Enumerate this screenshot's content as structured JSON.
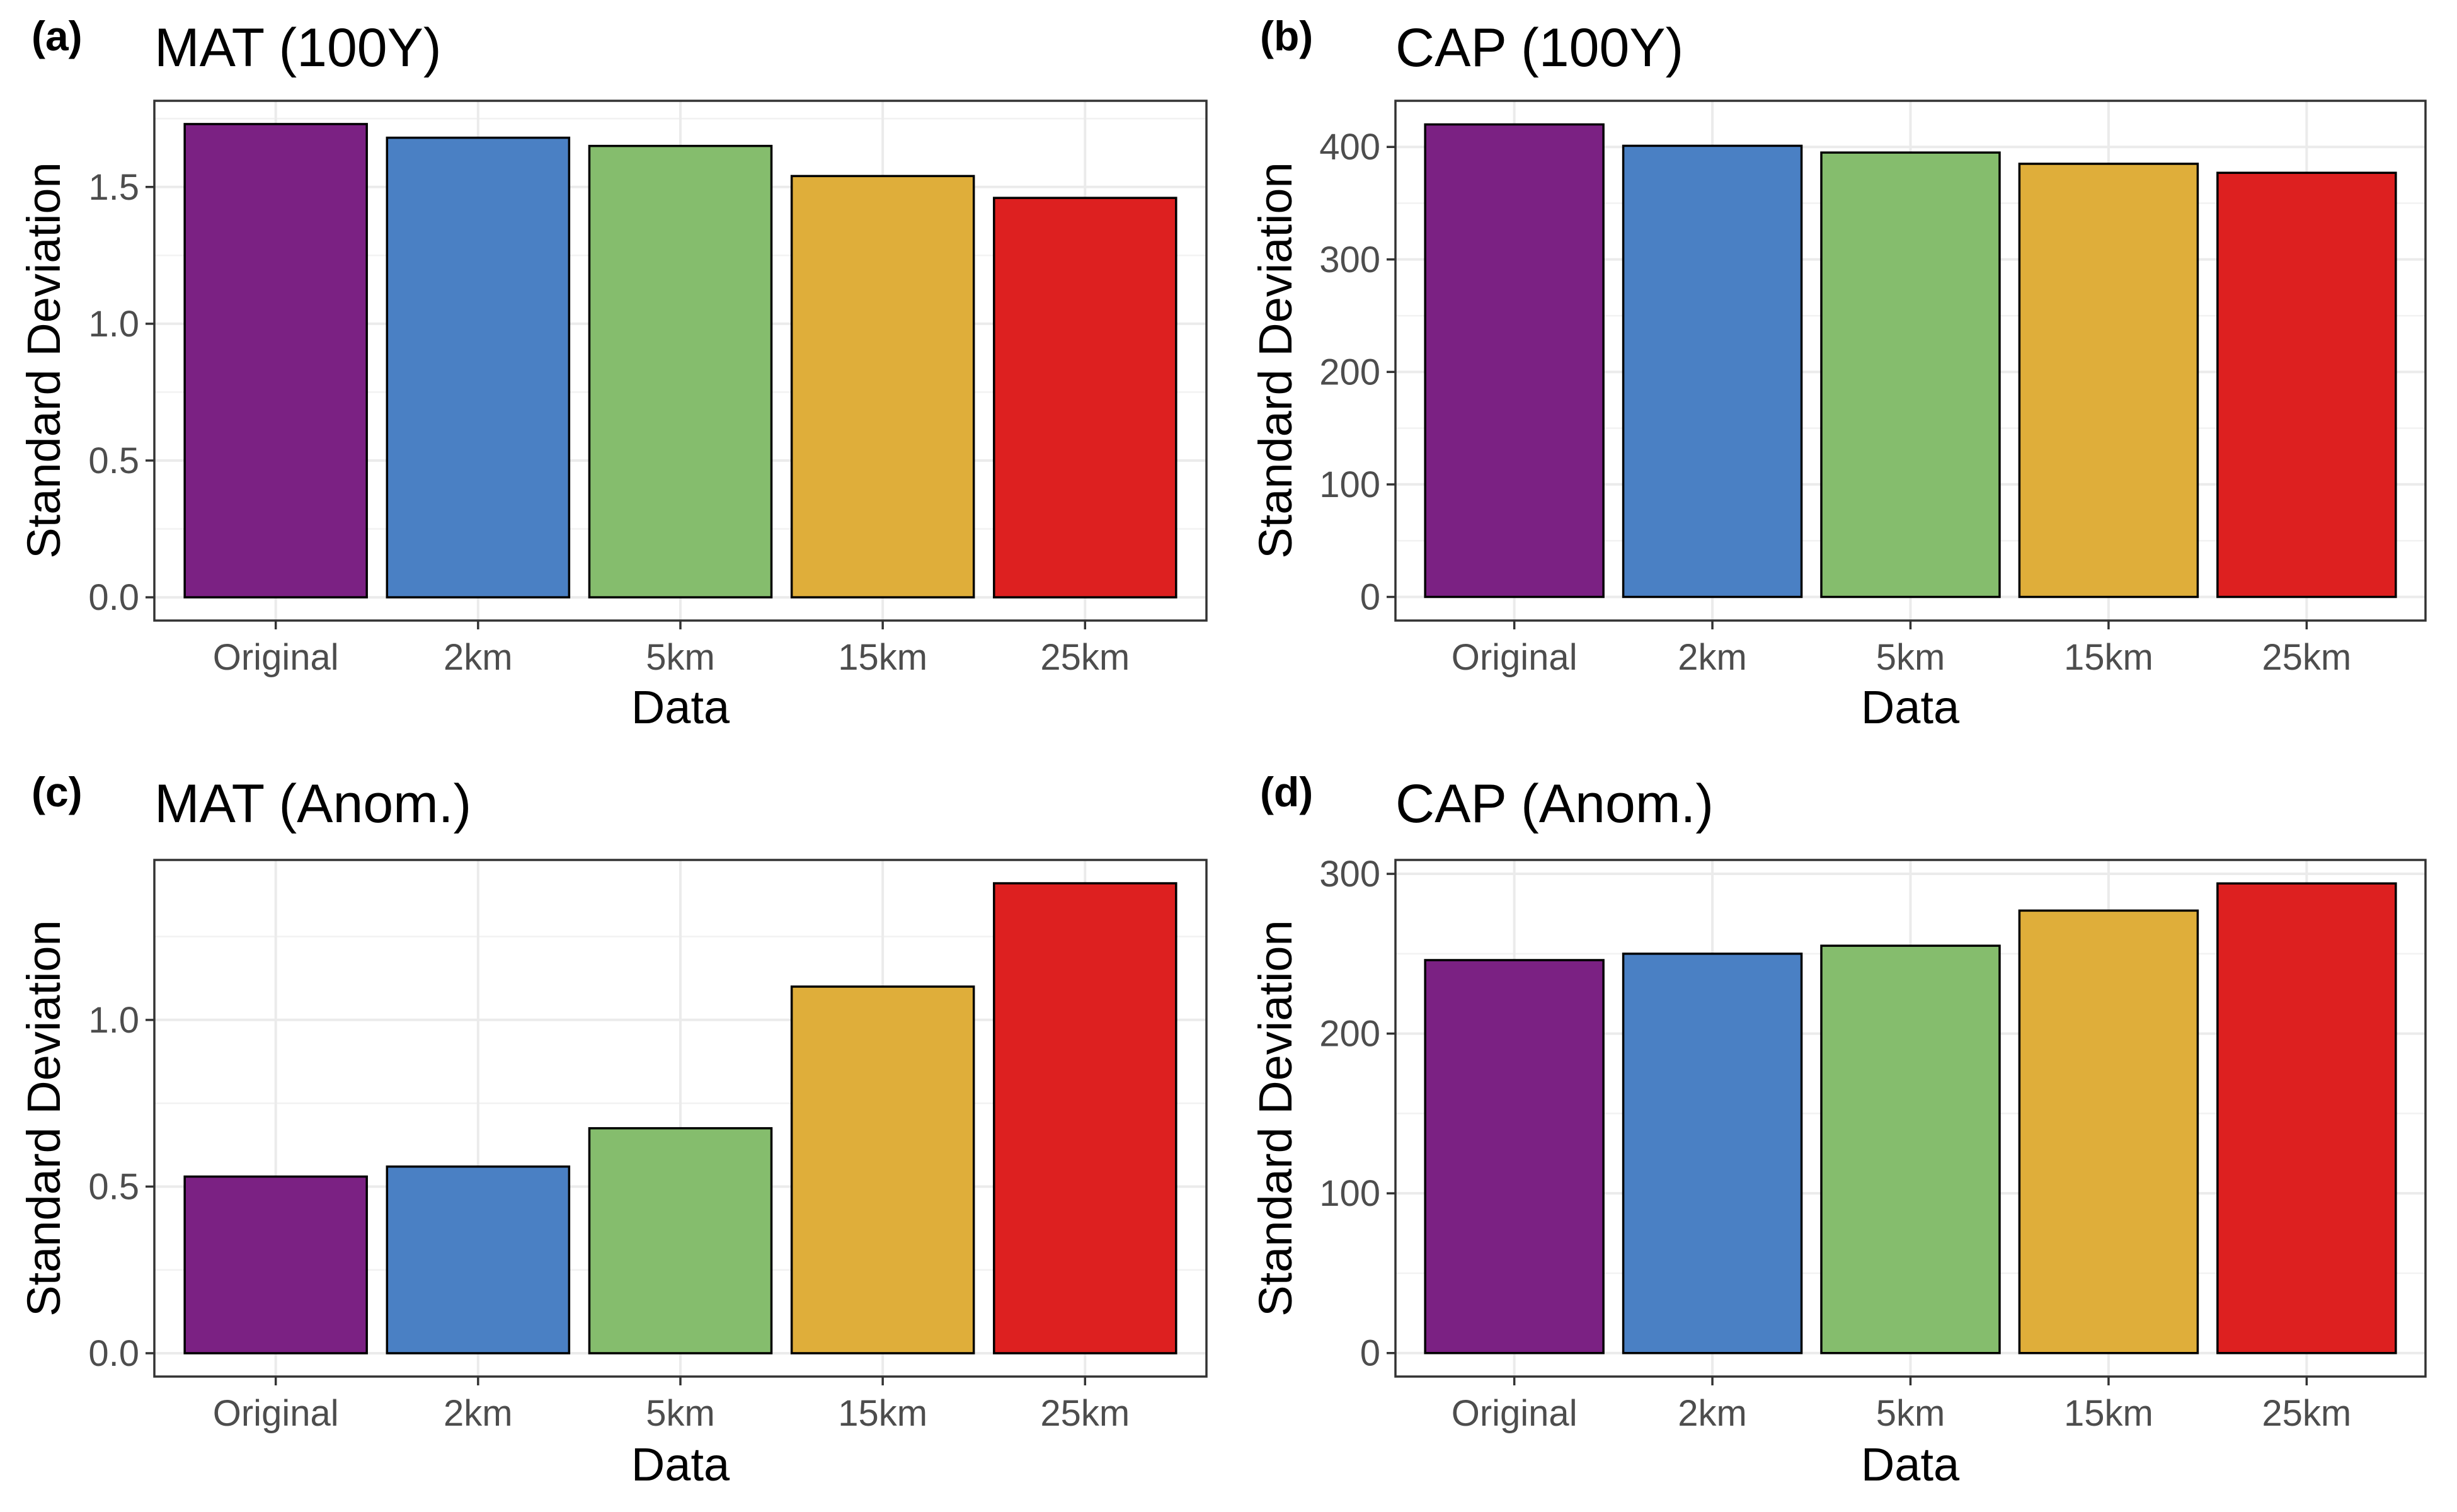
{
  "chart_data": [
    {
      "panel": "(a)",
      "title": "MAT (100Y)",
      "type": "bar",
      "xlabel": "Data",
      "ylabel": "Standard Deviation",
      "categories": [
        "Original",
        "2km",
        "5km",
        "15km",
        "25km"
      ],
      "values": [
        1.73,
        1.68,
        1.65,
        1.54,
        1.46
      ],
      "ylim": [
        -0.085,
        1.815
      ],
      "yticks": [
        0.0,
        0.5,
        1.0,
        1.5
      ],
      "ytick_labels": [
        "0.0",
        "0.5",
        "1.0",
        "1.5"
      ],
      "grid": true
    },
    {
      "panel": "(b)",
      "title": "CAP (100Y)",
      "type": "bar",
      "xlabel": "Data",
      "ylabel": "Standard Deviation",
      "categories": [
        "Original",
        "2km",
        "5km",
        "15km",
        "25km"
      ],
      "values": [
        420,
        401,
        395,
        385,
        377
      ],
      "ylim": [
        -21,
        441
      ],
      "yticks": [
        0,
        100,
        200,
        300,
        400
      ],
      "ytick_labels": [
        "0",
        "100",
        "200",
        "300",
        "400"
      ],
      "grid": true
    },
    {
      "panel": "(c)",
      "title": "MAT (Anom.)",
      "type": "bar",
      "xlabel": "Data",
      "ylabel": "Standard Deviation",
      "categories": [
        "Original",
        "2km",
        "5km",
        "15km",
        "25km"
      ],
      "values": [
        0.53,
        0.56,
        0.675,
        1.1,
        1.41
      ],
      "ylim": [
        -0.07,
        1.48
      ],
      "yticks": [
        0.0,
        0.5,
        1.0
      ],
      "ytick_labels": [
        "0.0",
        "0.5",
        "1.0"
      ],
      "grid": true
    },
    {
      "panel": "(d)",
      "title": "CAP (Anom.)",
      "type": "bar",
      "xlabel": "Data",
      "ylabel": "Standard Deviation",
      "categories": [
        "Original",
        "2km",
        "5km",
        "15km",
        "25km"
      ],
      "values": [
        246,
        250,
        255,
        277,
        294
      ],
      "ylim": [
        -14.7,
        308.7
      ],
      "yticks": [
        0,
        100,
        200,
        300
      ],
      "ytick_labels": [
        "0",
        "100",
        "200",
        "300"
      ],
      "grid": true
    }
  ],
  "colors": [
    "#7b2183",
    "#4a80c4",
    "#85bd6d",
    "#dfae3a",
    "#dd2020"
  ]
}
